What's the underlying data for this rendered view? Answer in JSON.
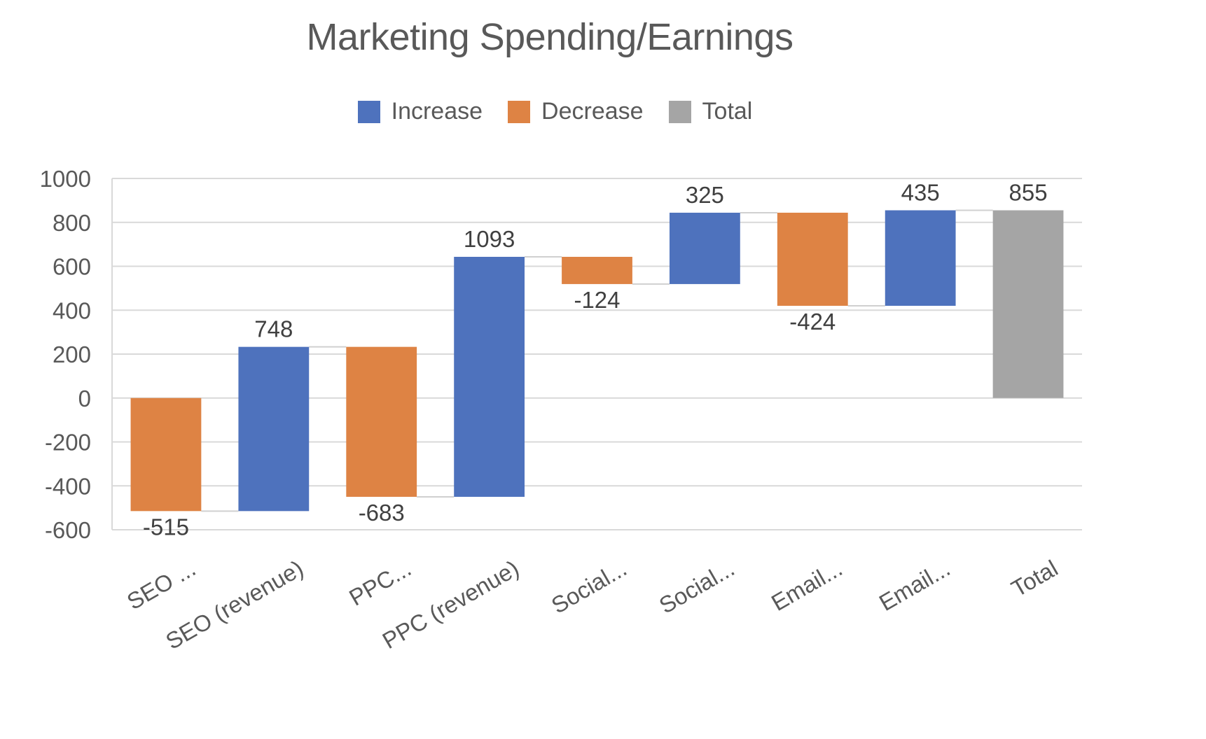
{
  "chart_data": {
    "type": "waterfall",
    "title": "Marketing Spending/Earnings",
    "xlabel": "",
    "ylabel": "",
    "ylim": [
      -600,
      1000
    ],
    "yticks": [
      1000,
      800,
      600,
      400,
      200,
      0,
      -200,
      -400,
      -600
    ],
    "grid": true,
    "legend_position": "top",
    "legend": [
      {
        "name": "Increase",
        "color": "#4e72bd"
      },
      {
        "name": "Decrease",
        "color": "#de8344"
      },
      {
        "name": "Total",
        "color": "#a5a5a5"
      }
    ],
    "categories": [
      "SEO ...",
      "SEO (revenue)",
      "PPC...",
      "PPC (revenue)",
      "Social...",
      "Social...",
      "Email...",
      "Email...",
      "Total"
    ],
    "values": [
      -515,
      748,
      -683,
      1093,
      -124,
      325,
      -424,
      435,
      855
    ],
    "types": [
      "decrease",
      "increase",
      "decrease",
      "increase",
      "decrease",
      "increase",
      "decrease",
      "increase",
      "total"
    ],
    "running_totals": [
      -515,
      233,
      -450,
      643,
      519,
      844,
      420,
      855,
      855
    ],
    "data_labels": [
      "-515",
      "748",
      "-683",
      "1093",
      "-124",
      "325",
      "-424",
      "435",
      "855"
    ]
  },
  "colors": {
    "increase": "#4e72bd",
    "decrease": "#de8344",
    "total": "#a5a5a5",
    "grid": "#d9d9d9",
    "text": "#595959"
  }
}
